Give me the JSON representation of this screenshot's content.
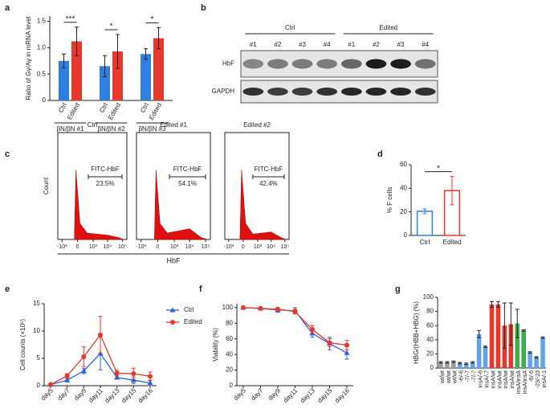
{
  "chart_data": [
    {
      "panel": "a",
      "type": "grouped_bar",
      "ylabel": "Ratio of Gγ/Aγ in mRNA level",
      "categories": [
        "βN/βN #1",
        "βN/βN #2",
        "βN/βN #3"
      ],
      "series": [
        {
          "name": "Ctrl",
          "color": "#2f7fe0",
          "values": [
            0.75,
            0.65,
            0.88
          ],
          "errors": [
            0.13,
            0.2,
            0.1
          ]
        },
        {
          "name": "Edited",
          "color": "#e8372c",
          "values": [
            1.12,
            0.93,
            1.18
          ],
          "errors": [
            0.27,
            0.32,
            0.2
          ]
        }
      ],
      "significance": [
        "***",
        "*",
        "*"
      ],
      "ylim": [
        0,
        1.6
      ],
      "yticks": [
        0,
        0.5,
        {
          "value": 1,
          "label": "1.0"
        },
        1.5
      ]
    },
    {
      "panel": "b",
      "type": "blot",
      "groups": [
        "Ctrl",
        "Edited"
      ],
      "lanes": [
        "#1",
        "#2",
        "#3",
        "#4",
        "#1",
        "#2",
        "#3",
        "#4"
      ],
      "rows": [
        "HbF",
        "GAPDH"
      ]
    },
    {
      "panel": "c",
      "type": "flow",
      "ylabel": "Count",
      "xlabel": "HbF",
      "plots": [
        {
          "title": "Ctrl",
          "gate": "FITC-HbF",
          "percent": "23.5%"
        },
        {
          "title": "Edited #1",
          "gate": "FITC-HbF",
          "percent": "54.1%"
        },
        {
          "title": "Edited #2",
          "gate": "FITC-HbF",
          "percent": "42.4%"
        }
      ],
      "xlim": [
        -2000,
        200000
      ],
      "xticks": [
        {
          "value": -1000,
          "label": "-10³"
        },
        0,
        {
          "value": 1000,
          "label": "10³"
        },
        {
          "value": 10000,
          "label": "10⁴"
        },
        {
          "value": 100000,
          "label": "10⁵"
        }
      ]
    },
    {
      "panel": "d",
      "type": "bar",
      "ylabel": "% F cells",
      "outline": true,
      "categories": [
        "Ctrl",
        "Edited"
      ],
      "values": [
        20.5,
        38
      ],
      "errors": [
        2,
        12
      ],
      "colors": [
        "#2f7fe0",
        "#e8372c"
      ],
      "significance": "*",
      "ylim": [
        0,
        60
      ],
      "yticks": [
        0,
        20,
        40,
        60
      ]
    },
    {
      "panel": "e",
      "type": "line",
      "ylabel": "Cell counts (×10⁵)",
      "legend": true,
      "categories": [
        "day5",
        "day7",
        "day9",
        "day11",
        "day13",
        "day15",
        "day16"
      ],
      "series": [
        {
          "name": "Ctrl",
          "color": "#2f5fe0",
          "marker": "triangle",
          "values": [
            0.2,
            1.0,
            2.7,
            5.9,
            1.5,
            1.0,
            0.5
          ],
          "errors": [
            0.1,
            0.3,
            0.5,
            3.0,
            0.3,
            0.6,
            0.5
          ]
        },
        {
          "name": "Edited",
          "color": "#e8372c",
          "marker": "circle",
          "values": [
            0.2,
            1.8,
            5.3,
            9.3,
            2.3,
            2.2,
            1.7
          ],
          "errors": [
            0.1,
            0.4,
            1.8,
            3.4,
            0.5,
            1.0,
            0.8
          ]
        }
      ],
      "ylim": [
        0,
        15
      ],
      "yticks": [
        0,
        5,
        10,
        15
      ]
    },
    {
      "panel": "f",
      "type": "line",
      "ylabel": "Viability (%)",
      "legend": false,
      "categories": [
        "day5",
        "day7",
        "day9",
        "day11",
        "day13",
        "day15",
        "day16"
      ],
      "series": [
        {
          "name": "Ctrl",
          "color": "#2f5fe0",
          "marker": "triangle",
          "values": [
            100,
            99,
            97,
            96,
            67,
            54,
            42
          ],
          "errors": [
            1,
            1,
            3,
            4,
            5,
            8,
            8
          ]
        },
        {
          "name": "Edited",
          "color": "#e8372c",
          "marker": "circle",
          "values": [
            100,
            99,
            98,
            95,
            72,
            55,
            52
          ],
          "errors": [
            1,
            1,
            2,
            3,
            5,
            5,
            6
          ]
        }
      ],
      "ylim": [
        0,
        105
      ],
      "yticks": [
        0,
        20,
        40,
        60,
        80,
        100
      ]
    },
    {
      "panel": "g",
      "type": "bar",
      "ylabel": "HBG/(HBB+HBG) (%)",
      "outline": false,
      "categories": [
        "wt/wt",
        "wt/wt",
        "wt/wt",
        "-6/-6",
        "-7/-7",
        "-7/-7",
        "insA/-6",
        "insA/-7",
        "insA/wt",
        "insA/wt",
        "insA/wt",
        "insA/wt",
        "insA/insA",
        "insA/insA",
        "-6/-6",
        "-23/-23",
        "insA/-1"
      ],
      "values": [
        8,
        8,
        9,
        7,
        6,
        8,
        48,
        30,
        90,
        90,
        60,
        62,
        63,
        53,
        22,
        15,
        43
      ],
      "errors": [
        1,
        1,
        1,
        1,
        1,
        1,
        5,
        1,
        4,
        4,
        32,
        30,
        20,
        1,
        1,
        1,
        1
      ],
      "colors": [
        "#9a9a9a",
        "#9a9a9a",
        "#9a9a9a",
        "#5fa3ea",
        "#5fa3ea",
        "#5fa3ea",
        "#5fa3ea",
        "#5fa3ea",
        "#e8372c",
        "#e8372c",
        "#e8372c",
        "#e8372c",
        "#3cae4a",
        "#3cae4a",
        "#5fa3ea",
        "#5fa3ea",
        "#5fa3ea"
      ],
      "ylim": [
        0,
        100
      ],
      "yticks": [
        0,
        20,
        40,
        60,
        80,
        100
      ]
    }
  ]
}
